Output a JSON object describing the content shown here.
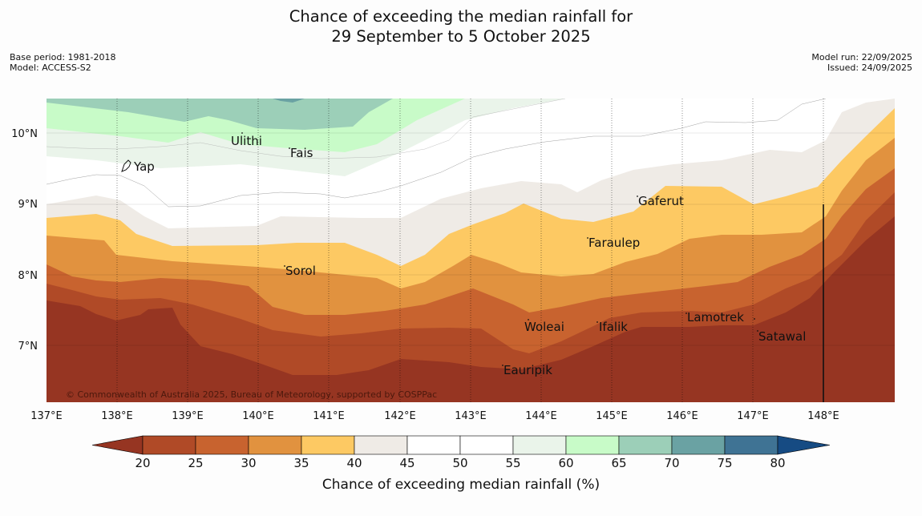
{
  "title": {
    "line1": "Chance of exceeding the median rainfall for",
    "line2": "29 September to 5 October 2025"
  },
  "meta_left": {
    "base_period": "Base period: 1981-2018",
    "model": "Model: ACCESS-S2"
  },
  "meta_right": {
    "model_run": "Model run: 22/09/2025",
    "issued": "Issued: 24/09/2025"
  },
  "map": {
    "lon_labels": [
      "137°E",
      "138°E",
      "139°E",
      "140°E",
      "141°E",
      "142°E",
      "143°E",
      "144°E",
      "145°E",
      "146°E",
      "147°E",
      "148°E"
    ],
    "lat_labels": [
      "10°N",
      "9°N",
      "8°N",
      "7°N"
    ],
    "places": [
      "Yap",
      "Ulithi",
      "Fais",
      "Gaferut",
      "Faraulep",
      "Sorol",
      "Woleai",
      "Ifalik",
      "Lamotrek",
      "Satawal",
      "Eauripik"
    ],
    "copyright": "© Commonwealth of Australia 2025, Bureau of Meteorology, supported by COSPPac"
  },
  "colorbar": {
    "ticks": [
      "20",
      "25",
      "30",
      "35",
      "40",
      "45",
      "50",
      "55",
      "60",
      "65",
      "70",
      "75",
      "80"
    ],
    "label": "Chance of exceeding median rainfall (%)",
    "colors": [
      "#963522",
      "#b04a27",
      "#c8632f",
      "#e1923f",
      "#fdc963",
      "#efebe6",
      "#ffffff",
      "#ffffff",
      "#eaf4ea",
      "#c8fbc8",
      "#9ccfb8",
      "#6aa2a3",
      "#3f7394",
      "#164b83"
    ]
  }
}
